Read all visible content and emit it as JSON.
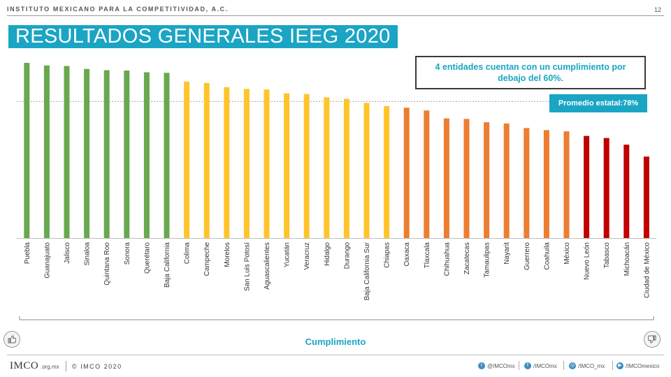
{
  "header": {
    "org_name": "INSTITUTO MEXICANO PARA LA COMPETITIVIDAD, A.C.",
    "page_number": "12"
  },
  "title": "RESULTADOS GENERALES IEEG 2020",
  "callout": "4 entidades cuentan con un cumplimiento por debajo del 60%.",
  "average_label": "Promedio estatal:78%",
  "xlabel": "Cumplimiento",
  "colors": {
    "accent": "#1aa5c4",
    "green": "#6aa84f",
    "yellow": "#ffc42b",
    "orange": "#ed7d31",
    "red": "#c00000"
  },
  "chart_data": {
    "type": "bar",
    "title": "",
    "xlabel": "Cumplimiento",
    "ylabel": "",
    "ylim": [
      0,
      100
    ],
    "average": 78,
    "grid": false,
    "legend": "none",
    "categories": [
      "Puebla",
      "Guanajuato",
      "Jalisco",
      "Sinaloa",
      "Quintana Roo",
      "Sonora",
      "Querétaro",
      "Baja California",
      "Colima",
      "Campeche",
      "Morelos",
      "San Luis Potosí",
      "Aguascalientes",
      "Yucatán",
      "Veracruz",
      "Hidalgo",
      "Durango",
      "Baja California Sur",
      "Chiapas",
      "Oaxaca",
      "Tlaxcala",
      "Chihuahua",
      "Zacatecas",
      "Tamaulipas",
      "Nayarit",
      "Guerrero",
      "Coahuila",
      "México",
      "Nuevo León",
      "Tabasco",
      "Michoacán",
      "Ciudad de México"
    ],
    "values": [
      100,
      98.5,
      98.2,
      96.5,
      95.8,
      95.6,
      94.6,
      94.3,
      89.3,
      88.5,
      86.1,
      85.1,
      84.8,
      82.6,
      82.2,
      80.3,
      79.5,
      77.1,
      75.3,
      74.4,
      72.8,
      68.3,
      68,
      66.1,
      65.4,
      62.8,
      61.6,
      60.9,
      58.3,
      57.1,
      53.3,
      46.5
    ],
    "groups": [
      "green",
      "green",
      "green",
      "green",
      "green",
      "green",
      "green",
      "green",
      "yellow",
      "yellow",
      "yellow",
      "yellow",
      "yellow",
      "yellow",
      "yellow",
      "yellow",
      "yellow",
      "yellow",
      "yellow",
      "orange",
      "orange",
      "orange",
      "orange",
      "orange",
      "orange",
      "orange",
      "orange",
      "orange",
      "red",
      "red",
      "red",
      "red"
    ]
  },
  "footer": {
    "logo": "IMCO",
    "logo_sub": ".org.mx",
    "copyright": "© IMCO 2020",
    "social": [
      {
        "icon": "twitter-icon",
        "glyph": "t",
        "label": "@IMCOmx"
      },
      {
        "icon": "facebook-icon",
        "glyph": "f",
        "label": "/IMCOmx"
      },
      {
        "icon": "instagram-icon",
        "glyph": "◎",
        "label": "/IMCO_mx"
      },
      {
        "icon": "youtube-icon",
        "glyph": "▶",
        "label": "/IMCOmexico"
      }
    ]
  }
}
